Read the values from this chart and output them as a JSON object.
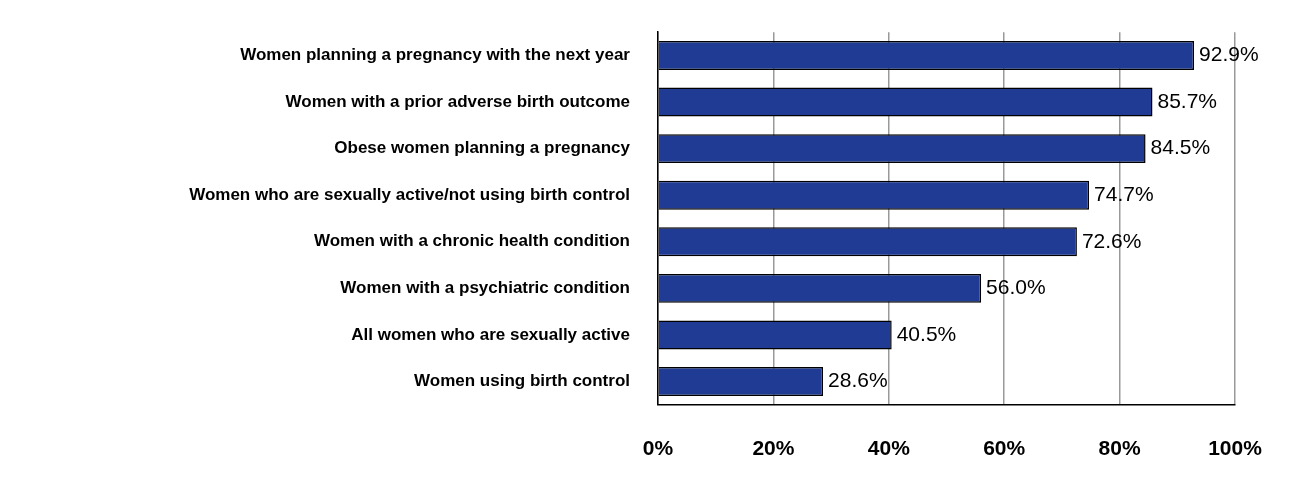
{
  "chart_data": {
    "type": "bar",
    "orientation": "horizontal",
    "categories": [
      "Women planning a pregnancy with the next year",
      "Women with a prior adverse birth outcome",
      "Obese women planning a pregnancy",
      "Women who are sexually active/not using birth control",
      "Women with a chronic health condition",
      "Women with a psychiatric condition",
      "All women who are sexually active",
      "Women using birth control"
    ],
    "values": [
      92.9,
      85.7,
      84.5,
      74.7,
      72.6,
      56.0,
      40.5,
      28.6
    ],
    "value_labels": [
      "92.9%",
      "85.7%",
      "84.5%",
      "74.7%",
      "72.6%",
      "56.0%",
      "40.5%",
      "28.6%"
    ],
    "color": "#1f3b94",
    "xlim": [
      0,
      100
    ],
    "xticks": [
      {
        "value": 0,
        "label": "0%"
      },
      {
        "value": 20,
        "label": "20%"
      },
      {
        "value": 40,
        "label": "40%"
      },
      {
        "value": 60,
        "label": "60%"
      },
      {
        "value": 80,
        "label": "80%"
      },
      {
        "value": 100,
        "label": "100%"
      }
    ],
    "grid": "x"
  }
}
